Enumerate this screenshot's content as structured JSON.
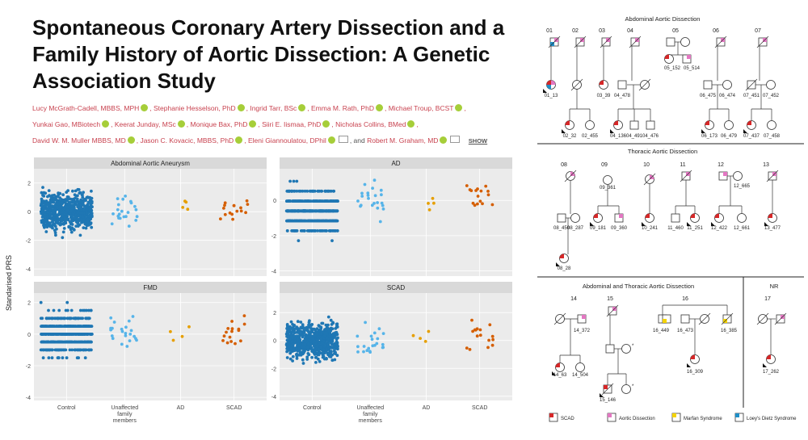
{
  "article": {
    "title": "Spontaneous Coronary Artery Dissection and a Family History of Aortic Dissection: A Genetic Association Study",
    "authors": [
      {
        "name": "Lucy McGrath-Cadell, MBBS, MPH"
      },
      {
        "name": "Stephanie Hesselson, PhD"
      },
      {
        "name": "Ingrid Tarr, BSc"
      },
      {
        "name": "Emma M. Rath, PhD"
      },
      {
        "name": "Michael Troup, BCST"
      },
      {
        "name": "Yunkai Gao, MBiotech"
      },
      {
        "name": "Keerat Junday, MSc"
      },
      {
        "name": "Monique Bax, PhD"
      },
      {
        "name": "Siiri E. Iismaa, PhD"
      },
      {
        "name": "Nicholas Collins, BMed"
      },
      {
        "name": "David W. M. Muller MBBS, MD"
      },
      {
        "name": "Jason C. Kovacic, MBBS, PhD"
      },
      {
        "name": "Eleni Giannoulatou, DPhil"
      },
      {
        "name": "Robert M. Graham, MD"
      }
    ],
    "and_text": ", and",
    "show_label": "SHOW"
  },
  "figure": {
    "ylabel": "Standarised PRS",
    "xcategories": [
      "Control",
      "Unaffected family members",
      "AD",
      "SCAD"
    ],
    "colors": {
      "Control": "#1f77b4",
      "Unaffected family members": "#56b4e9",
      "AD": "#e69f00",
      "SCAD": "#d55e00"
    },
    "panels": [
      {
        "name": "Abdominal Aortic Aneurysm",
        "yticks": [
          2,
          0,
          -2,
          -4
        ]
      },
      {
        "name": "AD",
        "yticks": [
          0,
          -2,
          -4
        ]
      },
      {
        "name": "FMD",
        "yticks": [
          2,
          0,
          -2,
          -4
        ]
      },
      {
        "name": "SCAD",
        "yticks": [
          2,
          0,
          -2,
          -4
        ]
      }
    ]
  },
  "pedigrees": {
    "sections": [
      "Abdominal Aortic Dissection",
      "Thoracic Aortic Dissection",
      "Abdominal and Thoracic Aortic Dissection",
      "NR"
    ],
    "families": [
      "01",
      "02",
      "03",
      "04",
      "05",
      "06",
      "07",
      "08",
      "09",
      "10",
      "11",
      "12",
      "13",
      "14",
      "15",
      "16",
      "17"
    ],
    "legend": [
      "SCAD",
      "Aortic Dissection",
      "Marfan Syndrome",
      "Loey's Dietz Syndrome"
    ]
  }
}
